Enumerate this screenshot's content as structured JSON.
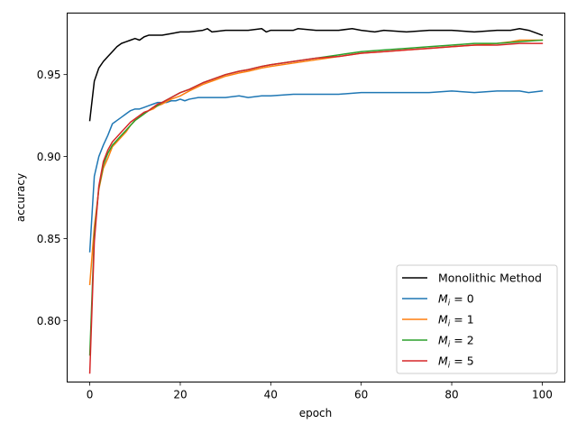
{
  "chart_data": {
    "type": "line",
    "title": "",
    "xlabel": "epoch",
    "ylabel": "accuracy",
    "xlim": [
      -5,
      105
    ],
    "ylim": [
      0.7625,
      0.9875
    ],
    "xticks": [
      0,
      20,
      40,
      60,
      80,
      100
    ],
    "yticks": [
      0.8,
      0.85,
      0.9,
      0.95
    ],
    "ytick_labels": [
      "0.80",
      "0.85",
      "0.90",
      "0.95"
    ],
    "legend": {
      "position": "lower-right"
    },
    "grid": false,
    "series": [
      {
        "name": "Monolithic Method",
        "legend_main": "Monolithic Method",
        "color": "#000000",
        "points": [
          [
            0,
            0.922
          ],
          [
            1,
            0.946
          ],
          [
            2,
            0.954
          ],
          [
            3,
            0.958
          ],
          [
            4,
            0.961
          ],
          [
            5,
            0.964
          ],
          [
            6,
            0.967
          ],
          [
            7,
            0.969
          ],
          [
            8,
            0.97
          ],
          [
            9,
            0.971
          ],
          [
            10,
            0.972
          ],
          [
            11,
            0.971
          ],
          [
            12,
            0.973
          ],
          [
            13,
            0.974
          ],
          [
            14,
            0.974
          ],
          [
            15,
            0.974
          ],
          [
            16,
            0.974
          ],
          [
            18,
            0.975
          ],
          [
            20,
            0.976
          ],
          [
            22,
            0.976
          ],
          [
            25,
            0.977
          ],
          [
            26,
            0.978
          ],
          [
            27,
            0.976
          ],
          [
            30,
            0.977
          ],
          [
            35,
            0.977
          ],
          [
            38,
            0.978
          ],
          [
            39,
            0.976
          ],
          [
            40,
            0.977
          ],
          [
            45,
            0.977
          ],
          [
            46,
            0.978
          ],
          [
            50,
            0.977
          ],
          [
            55,
            0.977
          ],
          [
            58,
            0.978
          ],
          [
            60,
            0.977
          ],
          [
            63,
            0.976
          ],
          [
            65,
            0.977
          ],
          [
            70,
            0.976
          ],
          [
            75,
            0.977
          ],
          [
            80,
            0.977
          ],
          [
            85,
            0.976
          ],
          [
            90,
            0.977
          ],
          [
            93,
            0.977
          ],
          [
            95,
            0.978
          ],
          [
            97,
            0.977
          ],
          [
            99,
            0.975
          ],
          [
            100,
            0.974
          ]
        ]
      },
      {
        "name": "Mi = 0",
        "legend_main": "M",
        "legend_sub": "i",
        "legend_rest": " = 0",
        "color": "#1f77b4",
        "points": [
          [
            0,
            0.842
          ],
          [
            1,
            0.888
          ],
          [
            2,
            0.9
          ],
          [
            3,
            0.907
          ],
          [
            4,
            0.913
          ],
          [
            5,
            0.92
          ],
          [
            6,
            0.922
          ],
          [
            7,
            0.924
          ],
          [
            8,
            0.926
          ],
          [
            9,
            0.928
          ],
          [
            10,
            0.929
          ],
          [
            11,
            0.929
          ],
          [
            12,
            0.93
          ],
          [
            13,
            0.931
          ],
          [
            14,
            0.932
          ],
          [
            15,
            0.933
          ],
          [
            16,
            0.933
          ],
          [
            17,
            0.933
          ],
          [
            18,
            0.934
          ],
          [
            19,
            0.934
          ],
          [
            20,
            0.935
          ],
          [
            21,
            0.934
          ],
          [
            22,
            0.935
          ],
          [
            24,
            0.936
          ],
          [
            26,
            0.936
          ],
          [
            28,
            0.936
          ],
          [
            30,
            0.936
          ],
          [
            33,
            0.937
          ],
          [
            35,
            0.936
          ],
          [
            38,
            0.937
          ],
          [
            40,
            0.937
          ],
          [
            45,
            0.938
          ],
          [
            50,
            0.938
          ],
          [
            55,
            0.938
          ],
          [
            60,
            0.939
          ],
          [
            65,
            0.939
          ],
          [
            70,
            0.939
          ],
          [
            75,
            0.939
          ],
          [
            80,
            0.94
          ],
          [
            85,
            0.939
          ],
          [
            90,
            0.94
          ],
          [
            95,
            0.94
          ],
          [
            97,
            0.939
          ],
          [
            100,
            0.94
          ]
        ]
      },
      {
        "name": "Mi = 1",
        "legend_main": "M",
        "legend_sub": "i",
        "legend_rest": " = 1",
        "color": "#ff7f0e",
        "points": [
          [
            0,
            0.822
          ],
          [
            1,
            0.857
          ],
          [
            2,
            0.88
          ],
          [
            3,
            0.893
          ],
          [
            4,
            0.899
          ],
          [
            5,
            0.906
          ],
          [
            6,
            0.909
          ],
          [
            7,
            0.912
          ],
          [
            8,
            0.915
          ],
          [
            9,
            0.919
          ],
          [
            10,
            0.922
          ],
          [
            11,
            0.924
          ],
          [
            12,
            0.926
          ],
          [
            13,
            0.928
          ],
          [
            14,
            0.929
          ],
          [
            15,
            0.931
          ],
          [
            16,
            0.932
          ],
          [
            18,
            0.935
          ],
          [
            20,
            0.937
          ],
          [
            22,
            0.94
          ],
          [
            25,
            0.944
          ],
          [
            28,
            0.947
          ],
          [
            30,
            0.949
          ],
          [
            33,
            0.951
          ],
          [
            35,
            0.952
          ],
          [
            38,
            0.954
          ],
          [
            40,
            0.955
          ],
          [
            45,
            0.957
          ],
          [
            50,
            0.959
          ],
          [
            55,
            0.961
          ],
          [
            60,
            0.963
          ],
          [
            65,
            0.964
          ],
          [
            70,
            0.965
          ],
          [
            75,
            0.966
          ],
          [
            80,
            0.967
          ],
          [
            85,
            0.968
          ],
          [
            90,
            0.969
          ],
          [
            93,
            0.97
          ],
          [
            95,
            0.971
          ],
          [
            97,
            0.971
          ],
          [
            100,
            0.971
          ]
        ]
      },
      {
        "name": "Mi = 2",
        "legend_main": "M",
        "legend_sub": "i",
        "legend_rest": " = 2",
        "color": "#2ca02c",
        "points": [
          [
            0,
            0.779
          ],
          [
            1,
            0.852
          ],
          [
            2,
            0.881
          ],
          [
            3,
            0.895
          ],
          [
            4,
            0.902
          ],
          [
            5,
            0.907
          ],
          [
            6,
            0.91
          ],
          [
            7,
            0.913
          ],
          [
            8,
            0.916
          ],
          [
            9,
            0.919
          ],
          [
            10,
            0.922
          ],
          [
            11,
            0.924
          ],
          [
            12,
            0.926
          ],
          [
            13,
            0.928
          ],
          [
            14,
            0.93
          ],
          [
            15,
            0.931
          ],
          [
            16,
            0.933
          ],
          [
            18,
            0.936
          ],
          [
            20,
            0.939
          ],
          [
            22,
            0.941
          ],
          [
            25,
            0.945
          ],
          [
            28,
            0.948
          ],
          [
            30,
            0.95
          ],
          [
            33,
            0.952
          ],
          [
            35,
            0.953
          ],
          [
            38,
            0.955
          ],
          [
            40,
            0.956
          ],
          [
            45,
            0.958
          ],
          [
            50,
            0.96
          ],
          [
            55,
            0.962
          ],
          [
            60,
            0.964
          ],
          [
            65,
            0.965
          ],
          [
            70,
            0.966
          ],
          [
            75,
            0.967
          ],
          [
            80,
            0.968
          ],
          [
            85,
            0.969
          ],
          [
            90,
            0.969
          ],
          [
            95,
            0.97
          ],
          [
            100,
            0.971
          ]
        ]
      },
      {
        "name": "Mi = 5",
        "legend_main": "M",
        "legend_sub": "i",
        "legend_rest": " = 5",
        "color": "#d62728",
        "points": [
          [
            0,
            0.768
          ],
          [
            1,
            0.848
          ],
          [
            2,
            0.882
          ],
          [
            3,
            0.897
          ],
          [
            4,
            0.904
          ],
          [
            5,
            0.909
          ],
          [
            6,
            0.912
          ],
          [
            7,
            0.915
          ],
          [
            8,
            0.918
          ],
          [
            9,
            0.921
          ],
          [
            10,
            0.923
          ],
          [
            11,
            0.925
          ],
          [
            12,
            0.927
          ],
          [
            13,
            0.928
          ],
          [
            14,
            0.93
          ],
          [
            15,
            0.932
          ],
          [
            16,
            0.933
          ],
          [
            18,
            0.936
          ],
          [
            20,
            0.939
          ],
          [
            22,
            0.941
          ],
          [
            25,
            0.945
          ],
          [
            28,
            0.948
          ],
          [
            30,
            0.95
          ],
          [
            33,
            0.952
          ],
          [
            35,
            0.953
          ],
          [
            38,
            0.955
          ],
          [
            40,
            0.956
          ],
          [
            45,
            0.958
          ],
          [
            50,
            0.96
          ],
          [
            55,
            0.961
          ],
          [
            60,
            0.963
          ],
          [
            65,
            0.964
          ],
          [
            70,
            0.965
          ],
          [
            75,
            0.966
          ],
          [
            80,
            0.967
          ],
          [
            85,
            0.968
          ],
          [
            90,
            0.968
          ],
          [
            95,
            0.969
          ],
          [
            100,
            0.969
          ]
        ]
      }
    ]
  }
}
